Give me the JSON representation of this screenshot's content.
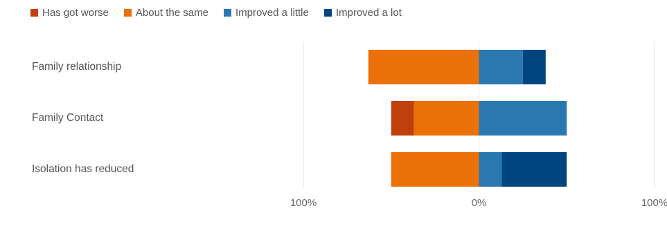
{
  "chart_data": {
    "type": "bar",
    "orientation": "horizontal",
    "stacking": "diverging",
    "categories": [
      "Family relationship",
      "Family Contact",
      "Isolation has reduced"
    ],
    "series": [
      {
        "name": "Has got worse",
        "color": "#C0400B",
        "side": "negative",
        "values": [
          0,
          13,
          0
        ]
      },
      {
        "name": "About the same",
        "color": "#EC7008",
        "side": "negative",
        "values": [
          63,
          37,
          50
        ]
      },
      {
        "name": "Improved a little",
        "color": "#2A78B0",
        "side": "positive",
        "values": [
          25,
          50,
          13
        ]
      },
      {
        "name": "Improved a lot",
        "color": "#004580",
        "side": "positive",
        "values": [
          13,
          0,
          37
        ]
      }
    ],
    "xlim": [
      -100,
      100
    ],
    "x_tick_labels": [
      "100%",
      "0%",
      "100%"
    ],
    "legend_position": "top-left",
    "grid": true
  }
}
